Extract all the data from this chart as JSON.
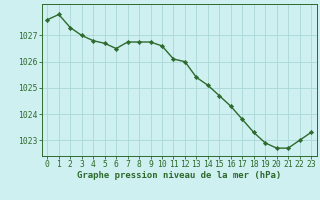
{
  "x": [
    0,
    1,
    2,
    3,
    4,
    5,
    6,
    7,
    8,
    9,
    10,
    11,
    12,
    13,
    14,
    15,
    16,
    17,
    18,
    19,
    20,
    21,
    22,
    23
  ],
  "y": [
    1027.6,
    1027.8,
    1027.3,
    1027.0,
    1026.8,
    1026.7,
    1026.5,
    1026.75,
    1026.75,
    1026.75,
    1026.6,
    1026.1,
    1026.0,
    1025.4,
    1025.1,
    1024.7,
    1024.3,
    1023.8,
    1023.3,
    1022.9,
    1022.7,
    1022.7,
    1023.0,
    1023.3
  ],
  "line_color": "#2d6a2d",
  "marker": "D",
  "marker_size": 2.2,
  "line_width": 1.0,
  "bg_color": "#cff0f0",
  "grid_color": "#aad8d8",
  "axis_color": "#2d6a2d",
  "tick_color": "#2d6a2d",
  "xlabel": "Graphe pression niveau de la mer (hPa)",
  "xlabel_fontsize": 6.5,
  "xlabel_color": "#2d6a2d",
  "yticks": [
    1023,
    1024,
    1025,
    1026,
    1027
  ],
  "xticks": [
    0,
    1,
    2,
    3,
    4,
    5,
    6,
    7,
    8,
    9,
    10,
    11,
    12,
    13,
    14,
    15,
    16,
    17,
    18,
    19,
    20,
    21,
    22,
    23
  ],
  "ylim": [
    1022.4,
    1028.2
  ],
  "xlim": [
    -0.5,
    23.5
  ],
  "tick_fontsize": 5.8
}
